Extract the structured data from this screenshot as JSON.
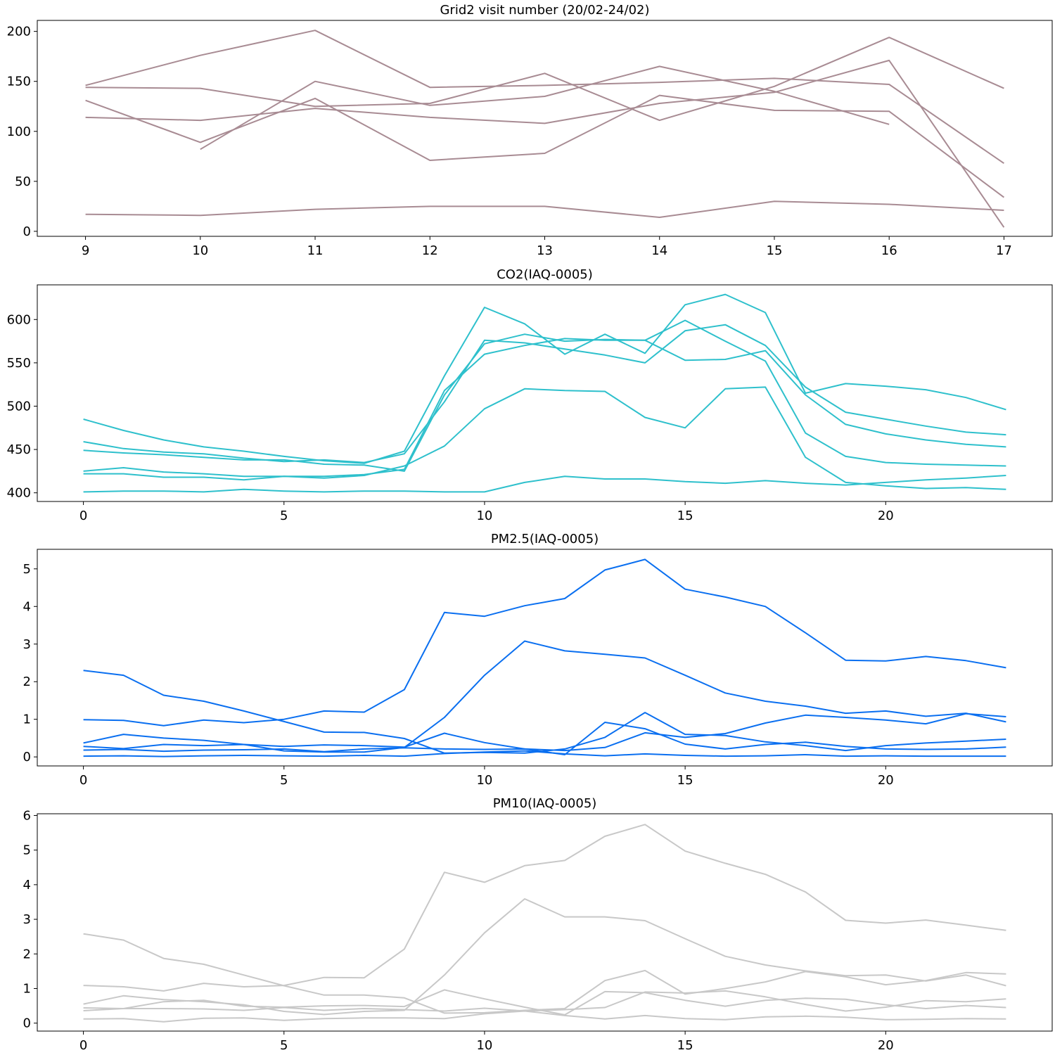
{
  "chart_data": [
    {
      "type": "line",
      "title": "Grid2 visit number (20/02-24/02)",
      "xlabel": "",
      "ylabel": "",
      "color": "#a88b93",
      "xlim": [
        8.58,
        17.42
      ],
      "ylim": [
        -5,
        211
      ],
      "xticks": [
        9,
        10,
        11,
        12,
        13,
        14,
        15,
        16,
        17
      ],
      "yticks": [
        0,
        50,
        100,
        150,
        200
      ],
      "grid": false,
      "series": [
        {
          "x": [
            9,
            10,
            11,
            12,
            13,
            14,
            15,
            16,
            17
          ],
          "values": [
            17,
            16,
            22,
            25,
            25,
            14,
            30,
            27,
            21
          ]
        },
        {
          "x": [
            9,
            10,
            11,
            12,
            13,
            14,
            15,
            16,
            17
          ],
          "values": [
            146,
            176,
            201,
            144,
            146,
            149,
            153,
            147,
            68
          ]
        },
        {
          "x": [
            9,
            10,
            11,
            12,
            13,
            14,
            15,
            16,
            17
          ],
          "values": [
            144,
            143,
            125,
            128,
            158,
            111,
            145,
            194,
            143
          ]
        },
        {
          "x": [
            9,
            10,
            11,
            12,
            13,
            14,
            15,
            16,
            17
          ],
          "values": [
            131,
            89,
            133,
            71,
            78,
            136,
            121,
            120,
            34
          ]
        },
        {
          "x": [
            9,
            10,
            11,
            12,
            13,
            14,
            15,
            16,
            17
          ],
          "values": [
            114,
            111,
            123,
            114,
            108,
            128,
            139,
            171,
            4
          ]
        },
        {
          "x": [
            10,
            11,
            12,
            13,
            14,
            15,
            16
          ],
          "values": [
            82,
            150,
            126,
            135,
            165,
            140,
            107
          ]
        }
      ]
    },
    {
      "type": "line",
      "title": "CO2(IAQ-0005)",
      "xlabel": "",
      "ylabel": "",
      "color": "#2ec0cc",
      "xlim": [
        -1.15,
        24.15
      ],
      "ylim": [
        390,
        640
      ],
      "xticks": [
        0,
        5,
        10,
        15,
        20
      ],
      "yticks": [
        400,
        450,
        500,
        550,
        600
      ],
      "grid": false,
      "series": [
        {
          "x": [
            0,
            1,
            2,
            3,
            4,
            5,
            6,
            7,
            8,
            9,
            10,
            11,
            12,
            13,
            14,
            15,
            16,
            17,
            18,
            19,
            20,
            21,
            22,
            23
          ],
          "values": [
            485,
            472,
            461,
            453,
            448,
            442,
            437,
            434,
            448,
            535,
            614,
            595,
            560,
            583,
            561,
            617,
            629,
            608,
            515,
            526,
            523,
            519,
            510,
            496
          ]
        },
        {
          "x": [
            0,
            1,
            2,
            3,
            4,
            5,
            6,
            7,
            8,
            9,
            10,
            11,
            12,
            13,
            14,
            15,
            16,
            17,
            18,
            19,
            20,
            21,
            22,
            23
          ],
          "values": [
            459,
            451,
            447,
            445,
            440,
            436,
            438,
            435,
            445,
            505,
            576,
            573,
            566,
            559,
            550,
            587,
            594,
            570,
            522,
            493,
            485,
            477,
            470,
            467
          ]
        },
        {
          "x": [
            0,
            1,
            2,
            3,
            4,
            5,
            6,
            7,
            8,
            9,
            10,
            11,
            12,
            13,
            14,
            15,
            16,
            17,
            18,
            19,
            20,
            21,
            22,
            23
          ],
          "values": [
            449,
            446,
            444,
            441,
            438,
            438,
            433,
            432,
            425,
            513,
            572,
            583,
            575,
            577,
            576,
            599,
            575,
            552,
            469,
            442,
            435,
            433,
            432,
            431
          ]
        },
        {
          "x": [
            0,
            1,
            2,
            3,
            4,
            5,
            6,
            7,
            8,
            9,
            10,
            11,
            12,
            13,
            14,
            15,
            16,
            17,
            18,
            19,
            20,
            21,
            22,
            23
          ],
          "values": [
            425,
            429,
            424,
            422,
            419,
            419,
            419,
            421,
            427,
            518,
            560,
            570,
            578,
            576,
            576,
            553,
            554,
            564,
            513,
            479,
            468,
            461,
            456,
            453
          ]
        },
        {
          "x": [
            0,
            1,
            2,
            3,
            4,
            5,
            6,
            7,
            8,
            9,
            10,
            11,
            12,
            13,
            14,
            15,
            16,
            17,
            18,
            19,
            20,
            21,
            22,
            23
          ],
          "values": [
            422,
            422,
            418,
            418,
            415,
            419,
            417,
            420,
            431,
            454,
            497,
            520,
            518,
            517,
            487,
            475,
            520,
            522,
            441,
            412,
            408,
            405,
            406,
            404
          ]
        },
        {
          "x": [
            0,
            1,
            2,
            3,
            4,
            5,
            6,
            7,
            8,
            9,
            10,
            11,
            12,
            13,
            14,
            15,
            16,
            17,
            18,
            19,
            20,
            21,
            22,
            23
          ],
          "values": [
            401,
            402,
            402,
            401,
            404,
            402,
            401,
            402,
            402,
            401,
            401,
            412,
            419,
            416,
            416,
            413,
            411,
            414,
            411,
            409,
            412,
            415,
            417,
            420
          ]
        }
      ]
    },
    {
      "type": "line",
      "title": "PM2.5(IAQ-0005)",
      "xlabel": "",
      "ylabel": "",
      "color": "#0a6ff0",
      "xlim": [
        -1.15,
        24.15
      ],
      "ylim": [
        -0.24,
        5.52
      ],
      "xticks": [
        0,
        5,
        10,
        15,
        20
      ],
      "yticks": [
        0,
        1,
        2,
        3,
        4,
        5
      ],
      "grid": false,
      "series": [
        {
          "x": [
            0,
            1,
            2,
            3,
            4,
            5,
            6,
            7,
            8,
            9,
            10,
            11,
            12,
            13,
            14,
            15,
            16,
            17,
            18,
            19,
            20,
            21,
            22,
            23
          ],
          "values": [
            2.3,
            2.17,
            1.64,
            1.48,
            1.22,
            0.94,
            0.66,
            0.65,
            0.49,
            0.1,
            0.12,
            0.1,
            0.21,
            0.52,
            1.18,
            0.6,
            0.57,
            0.4,
            0.3,
            0.17,
            0.3,
            0.37,
            0.42,
            0.47
          ]
        },
        {
          "x": [
            0,
            1,
            2,
            3,
            4,
            5,
            6,
            7,
            8,
            9,
            10,
            11,
            12,
            13,
            14,
            15,
            16,
            17,
            18,
            19,
            20,
            21,
            22,
            23
          ],
          "values": [
            0.99,
            0.97,
            0.83,
            0.98,
            0.91,
            1.0,
            1.22,
            1.19,
            1.79,
            3.84,
            3.74,
            4.02,
            4.21,
            4.97,
            5.25,
            4.46,
            4.25,
            4.0,
            3.3,
            2.57,
            2.55,
            2.67,
            2.56,
            2.37
          ]
        },
        {
          "x": [
            0,
            1,
            2,
            3,
            4,
            5,
            6,
            7,
            8,
            9,
            10,
            11,
            12,
            13,
            14,
            15,
            16,
            17,
            18,
            19,
            20,
            21,
            22,
            23
          ],
          "values": [
            0.37,
            0.6,
            0.5,
            0.44,
            0.33,
            0.16,
            0.13,
            0.13,
            0.25,
            1.05,
            2.17,
            3.08,
            2.82,
            2.73,
            2.63,
            2.17,
            1.7,
            1.48,
            1.35,
            1.16,
            1.22,
            1.08,
            1.16,
            0.93
          ]
        },
        {
          "x": [
            0,
            1,
            2,
            3,
            4,
            5,
            6,
            7,
            8,
            9,
            10,
            11,
            12,
            13,
            14,
            15,
            16,
            17,
            18,
            19,
            20,
            21,
            22,
            23
          ],
          "values": [
            0.28,
            0.22,
            0.33,
            0.3,
            0.33,
            0.28,
            0.32,
            0.3,
            0.26,
            0.63,
            0.38,
            0.21,
            0.06,
            0.92,
            0.75,
            0.34,
            0.21,
            0.33,
            0.39,
            0.28,
            0.21,
            0.2,
            0.21,
            0.26
          ]
        },
        {
          "x": [
            0,
            1,
            2,
            3,
            4,
            5,
            6,
            7,
            8,
            9,
            10,
            11,
            12,
            13,
            14,
            15,
            16,
            17,
            18,
            19,
            20,
            21,
            22,
            23
          ],
          "values": [
            0.18,
            0.2,
            0.15,
            0.18,
            0.19,
            0.21,
            0.14,
            0.21,
            0.24,
            0.21,
            0.2,
            0.21,
            0.17,
            0.25,
            0.64,
            0.52,
            0.62,
            0.9,
            1.11,
            1.05,
            0.98,
            0.88,
            1.15,
            1.07
          ]
        },
        {
          "x": [
            0,
            1,
            2,
            3,
            4,
            5,
            6,
            7,
            8,
            9,
            10,
            11,
            12,
            13,
            14,
            15,
            16,
            17,
            18,
            19,
            20,
            21,
            22,
            23
          ],
          "values": [
            0.02,
            0.03,
            0.01,
            0.03,
            0.04,
            0.03,
            0.02,
            0.04,
            0.02,
            0.09,
            0.13,
            0.16,
            0.08,
            0.03,
            0.08,
            0.04,
            0.02,
            0.03,
            0.06,
            0.02,
            0.03,
            0.02,
            0.02,
            0.02
          ]
        }
      ]
    },
    {
      "type": "line",
      "title": "PM10(IAQ-0005)",
      "xlabel": "",
      "ylabel": "",
      "color": "#c8c8c8",
      "xlim": [
        -1.15,
        24.15
      ],
      "ylim": [
        -0.23,
        6.05
      ],
      "xticks": [
        0,
        5,
        10,
        15,
        20
      ],
      "yticks": [
        0,
        1,
        2,
        3,
        4,
        5,
        6
      ],
      "grid": false,
      "series": [
        {
          "x": [
            0,
            1,
            2,
            3,
            4,
            5,
            6,
            7,
            8,
            9,
            10,
            11,
            12,
            13,
            14,
            15,
            16,
            17,
            18,
            19,
            20,
            21,
            22,
            23
          ],
          "values": [
            2.58,
            2.4,
            1.87,
            1.7,
            1.39,
            1.08,
            0.81,
            0.81,
            0.73,
            0.29,
            0.3,
            0.37,
            0.42,
            1.23,
            1.52,
            0.84,
            1.0,
            1.19,
            1.49,
            1.34,
            1.11,
            1.23,
            1.46,
            1.42
          ]
        },
        {
          "x": [
            0,
            1,
            2,
            3,
            4,
            5,
            6,
            7,
            8,
            9,
            10,
            11,
            12,
            13,
            14,
            15,
            16,
            17,
            18,
            19,
            20,
            21,
            22,
            23
          ],
          "values": [
            1.09,
            1.05,
            0.93,
            1.15,
            1.05,
            1.09,
            1.32,
            1.31,
            2.14,
            4.36,
            4.07,
            4.55,
            4.7,
            5.4,
            5.74,
            4.97,
            4.62,
            4.3,
            3.79,
            2.97,
            2.89,
            2.98,
            2.83,
            2.68
          ]
        },
        {
          "x": [
            0,
            1,
            2,
            3,
            4,
            5,
            6,
            7,
            8,
            9,
            10,
            11,
            12,
            13,
            14,
            15,
            16,
            17,
            18,
            19,
            20,
            21,
            22,
            23
          ],
          "values": [
            0.55,
            0.79,
            0.68,
            0.62,
            0.53,
            0.34,
            0.25,
            0.34,
            0.37,
            1.39,
            2.61,
            3.59,
            3.07,
            3.07,
            2.96,
            2.44,
            1.93,
            1.68,
            1.51,
            1.37,
            1.39,
            1.22,
            1.39,
            1.08
          ]
        },
        {
          "x": [
            0,
            1,
            2,
            3,
            4,
            5,
            6,
            7,
            8,
            9,
            10,
            11,
            12,
            13,
            14,
            15,
            16,
            17,
            18,
            19,
            20,
            21,
            22,
            23
          ],
          "values": [
            0.44,
            0.42,
            0.62,
            0.66,
            0.49,
            0.46,
            0.5,
            0.51,
            0.48,
            0.96,
            0.7,
            0.46,
            0.24,
            0.91,
            0.88,
            0.66,
            0.49,
            0.66,
            0.72,
            0.69,
            0.53,
            0.42,
            0.51,
            0.45
          ]
        },
        {
          "x": [
            0,
            1,
            2,
            3,
            4,
            5,
            6,
            7,
            8,
            9,
            10,
            11,
            12,
            13,
            14,
            15,
            16,
            17,
            18,
            19,
            20,
            21,
            22,
            23
          ],
          "values": [
            0.36,
            0.42,
            0.42,
            0.41,
            0.37,
            0.45,
            0.37,
            0.42,
            0.39,
            0.35,
            0.43,
            0.35,
            0.39,
            0.45,
            0.9,
            0.87,
            0.93,
            0.76,
            0.54,
            0.35,
            0.46,
            0.65,
            0.62,
            0.7
          ]
        },
        {
          "x": [
            0,
            1,
            2,
            3,
            4,
            5,
            6,
            7,
            8,
            9,
            10,
            11,
            12,
            13,
            14,
            15,
            16,
            17,
            18,
            19,
            20,
            21,
            22,
            23
          ],
          "values": [
            0.12,
            0.13,
            0.04,
            0.14,
            0.15,
            0.08,
            0.13,
            0.15,
            0.15,
            0.13,
            0.27,
            0.35,
            0.22,
            0.12,
            0.22,
            0.13,
            0.1,
            0.18,
            0.2,
            0.17,
            0.1,
            0.11,
            0.13,
            0.12
          ]
        }
      ]
    }
  ]
}
